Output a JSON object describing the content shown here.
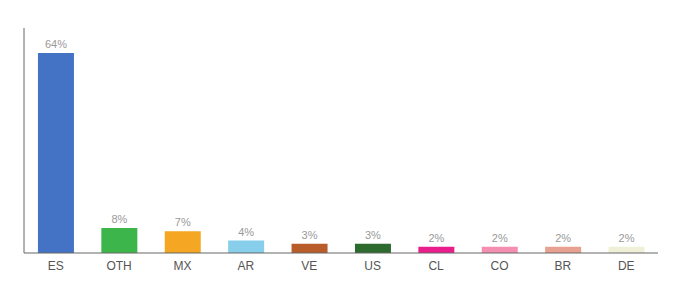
{
  "chart_data": {
    "type": "bar",
    "categories": [
      "ES",
      "OTH",
      "MX",
      "AR",
      "VE",
      "US",
      "CL",
      "CO",
      "BR",
      "DE"
    ],
    "values": [
      64,
      8,
      7,
      4,
      3,
      3,
      2,
      2,
      2,
      2
    ],
    "value_labels": [
      "64%",
      "8%",
      "7%",
      "4%",
      "3%",
      "3%",
      "2%",
      "2%",
      "2%",
      "2%"
    ],
    "colors": [
      "#4472c4",
      "#3cb54a",
      "#f5a623",
      "#87ceeb",
      "#b85c2a",
      "#2d6a2d",
      "#e91e8c",
      "#f48fb1",
      "#e8a090",
      "#f0f0d8"
    ],
    "ylim": [
      0,
      72
    ],
    "grid": false,
    "data_labels": true,
    "tick_labels": "x"
  }
}
